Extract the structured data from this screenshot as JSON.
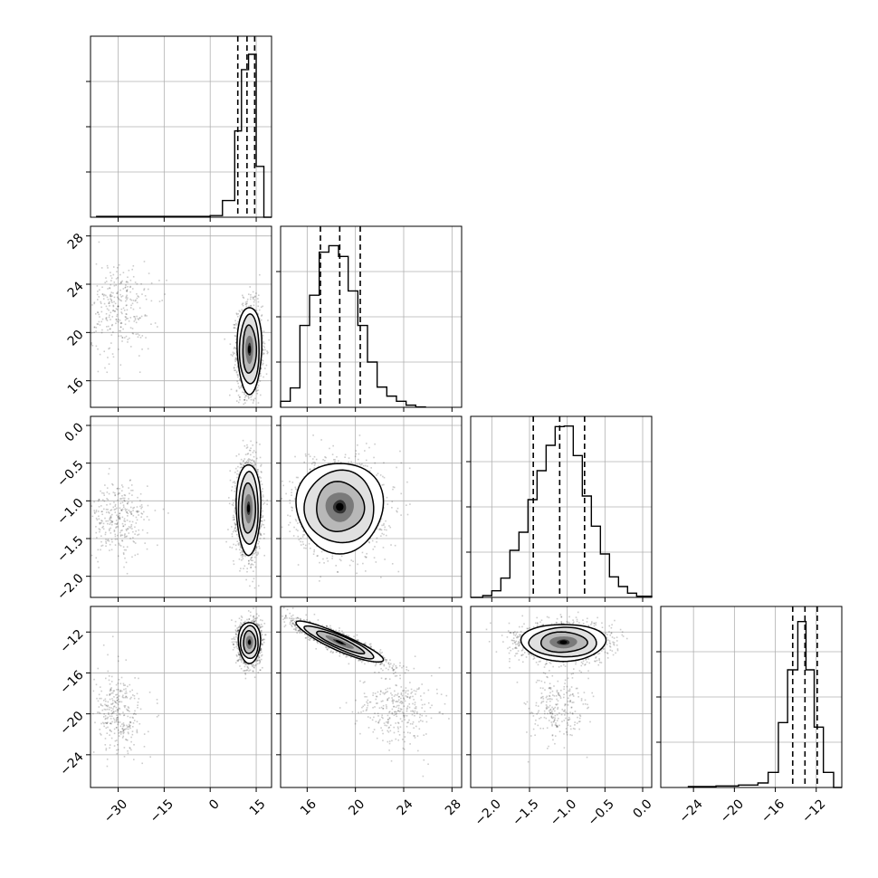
{
  "chart_data": {
    "type": "corner",
    "title": "",
    "grid": true,
    "variables": [
      {
        "label": "",
        "range": [
          -39,
          20
        ],
        "ticks": [
          -30,
          -15,
          0,
          15
        ],
        "tick_labels": [
          "−30",
          "−15",
          "0",
          "15"
        ],
        "quantiles": [
          9.0,
          12.0,
          14.5
        ],
        "hist_max": 13.0,
        "hist": [
          [
            -37,
            -25,
            0.06
          ],
          [
            -4,
            0,
            0.06
          ],
          [
            0,
            4,
            0.12
          ],
          [
            4,
            8,
            1.2
          ],
          [
            8,
            10.2,
            6.2
          ],
          [
            10.2,
            12.5,
            10.6
          ],
          [
            12.5,
            15,
            11.7
          ],
          [
            15,
            17.5,
            3.65
          ],
          [
            17.5,
            20,
            0.0
          ]
        ]
      },
      {
        "label": "",
        "range": [
          13.8,
          28.8
        ],
        "ticks": [
          16,
          20,
          24,
          28
        ],
        "tick_labels": [
          "16",
          "20",
          "24",
          "28"
        ],
        "quantiles": [
          17.1,
          18.7,
          20.4
        ],
        "hist_max": 0.42,
        "hist": [
          [
            13.8,
            14.6,
            0.014
          ],
          [
            14.6,
            15.4,
            0.045
          ],
          [
            15.4,
            16.2,
            0.19
          ],
          [
            16.2,
            17.0,
            0.26
          ],
          [
            17.0,
            17.8,
            0.36
          ],
          [
            17.8,
            18.6,
            0.375
          ],
          [
            18.6,
            19.4,
            0.35
          ],
          [
            19.4,
            20.2,
            0.27
          ],
          [
            20.2,
            21.0,
            0.19
          ],
          [
            21.0,
            21.8,
            0.105
          ],
          [
            21.8,
            22.6,
            0.047
          ],
          [
            22.6,
            23.4,
            0.026
          ],
          [
            23.4,
            24.2,
            0.014
          ],
          [
            24.2,
            25.0,
            0.005
          ],
          [
            25.0,
            25.8,
            0.001
          ]
        ]
      },
      {
        "label": "",
        "range": [
          -2.28,
          0.12
        ],
        "ticks": [
          -2.0,
          -1.5,
          -1.0,
          -0.5,
          0.0
        ],
        "tick_labels": [
          "−2.0",
          "−1.5",
          "−1.0",
          "−0.5",
          "0.0"
        ],
        "quantiles": [
          -1.45,
          -1.1,
          -0.77
        ],
        "hist_max": 3.0,
        "hist": [
          [
            -2.28,
            -2.12,
            0.0
          ],
          [
            -2.12,
            -2.0,
            0.03
          ],
          [
            -2.0,
            -1.88,
            0.11
          ],
          [
            -1.88,
            -1.76,
            0.32
          ],
          [
            -1.76,
            -1.64,
            0.78
          ],
          [
            -1.64,
            -1.52,
            1.08
          ],
          [
            -1.52,
            -1.4,
            1.62
          ],
          [
            -1.4,
            -1.28,
            2.1
          ],
          [
            -1.28,
            -1.16,
            2.52
          ],
          [
            -1.16,
            -1.04,
            2.83
          ],
          [
            -1.04,
            -0.92,
            2.84
          ],
          [
            -0.92,
            -0.8,
            2.35
          ],
          [
            -0.8,
            -0.68,
            1.68
          ],
          [
            -0.68,
            -0.56,
            1.18
          ],
          [
            -0.56,
            -0.44,
            0.72
          ],
          [
            -0.44,
            -0.32,
            0.34
          ],
          [
            -0.32,
            -0.2,
            0.18
          ],
          [
            -0.2,
            -0.08,
            0.07
          ],
          [
            -0.08,
            0.12,
            0.02
          ]
        ]
      },
      {
        "label": "",
        "range": [
          -27.2,
          -9.5
        ],
        "ticks": [
          -24,
          -20,
          -16,
          -12
        ],
        "tick_labels": [
          "−24",
          "−20",
          "−16",
          "−12"
        ],
        "quantiles": [
          -14.3,
          -13.1,
          -11.9
        ],
        "hist_max": 0.6,
        "hist": [
          [
            -24.5,
            -21.8,
            0.003
          ],
          [
            -21.8,
            -19.6,
            0.005
          ],
          [
            -19.6,
            -17.7,
            0.008
          ],
          [
            -17.7,
            -16.7,
            0.015
          ],
          [
            -16.7,
            -15.7,
            0.05
          ],
          [
            -15.7,
            -14.8,
            0.215
          ],
          [
            -14.8,
            -13.8,
            0.39
          ],
          [
            -13.8,
            -13.0,
            0.55
          ],
          [
            -13.0,
            -12.2,
            0.39
          ],
          [
            -12.2,
            -11.3,
            0.2
          ],
          [
            -11.3,
            -10.3,
            0.05
          ],
          [
            -10.3,
            -9.5,
            0.0
          ]
        ]
      }
    ],
    "panels_2d": [
      {
        "x": 0,
        "y": 1,
        "main": {
          "mx": 12.8,
          "my": 18.6,
          "sx": 2.0,
          "sy": 1.8,
          "rho": 0.0
        },
        "tail": {
          "mx": -30,
          "my": 22.0,
          "sx": 5.5,
          "sy": 2.0,
          "frac": 0.05
        }
      },
      {
        "x": 0,
        "y": 2,
        "main": {
          "mx": 12.5,
          "my": -1.1,
          "sx": 2.0,
          "sy": 0.3,
          "rho": 0.0
        },
        "tail": {
          "mx": -30,
          "my": -1.25,
          "sx": 5.0,
          "sy": 0.25,
          "frac": 0.05
        }
      },
      {
        "x": 0,
        "y": 3,
        "main": {
          "mx": 12.8,
          "my": -13.0,
          "sx": 1.8,
          "sy": 1.0,
          "rho": 0.0
        },
        "tail": {
          "mx": -30,
          "my": -20.0,
          "sx": 4.0,
          "sy": 2.0,
          "frac": 0.05
        }
      },
      {
        "x": 1,
        "y": 2,
        "main": {
          "mx": 18.7,
          "my": -1.08,
          "sx": 1.8,
          "sy": 0.3,
          "rho": 0.0
        },
        "tail": null
      },
      {
        "x": 1,
        "y": 3,
        "main": {
          "mx": 18.7,
          "my": -13.0,
          "sx": 1.8,
          "sy": 1.0,
          "rho": -0.9
        },
        "tail": {
          "mx": 23.5,
          "my": -19.5,
          "sx": 1.6,
          "sy": 1.8,
          "frac": 0.05
        }
      },
      {
        "x": 2,
        "y": 3,
        "main": {
          "mx": -1.05,
          "my": -13.0,
          "sx": 0.28,
          "sy": 0.9,
          "rho": 0.0
        },
        "tail": {
          "mx": -1.15,
          "my": -19.5,
          "sx": 0.2,
          "sy": 1.8,
          "frac": 0.04
        }
      }
    ]
  }
}
